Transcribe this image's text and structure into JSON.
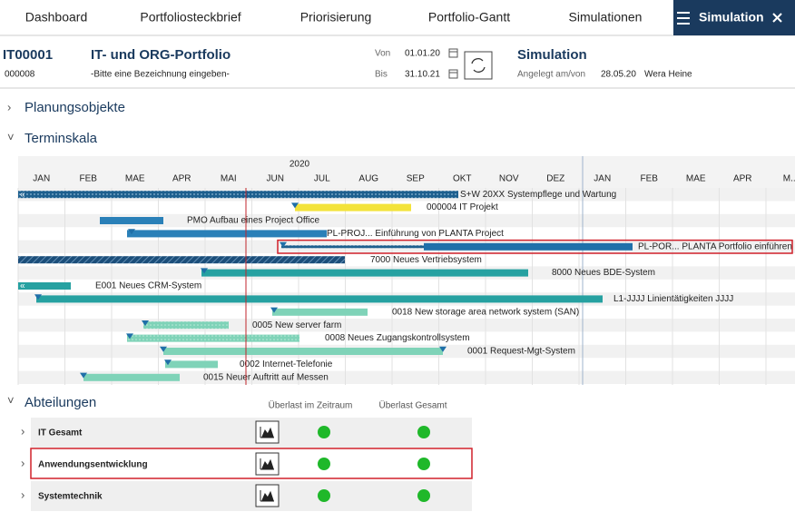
{
  "nav": {
    "tabs": [
      "Dashboard",
      "Portfoliosteckbrief",
      "Priorisierung",
      "Portfolio-Gantt",
      "Simulationen"
    ],
    "active": "Simulation"
  },
  "header": {
    "id": "IT00001",
    "sub_id": "000008",
    "title": "IT- und ORG-Portfolio",
    "description": "-Bitte eine Bezeichnung eingeben-",
    "from_label": "Von",
    "from": "01.01.20",
    "to_label": "Bis",
    "to": "31.10.21",
    "kind": "Simulation",
    "created_label": "Angelegt am/von",
    "created_date": "28.05.20",
    "created_by": "Wera Heine"
  },
  "sections": [
    "Planungsobjekte",
    "Terminskala",
    "Abteilungen"
  ],
  "gantt": {
    "year": "2020",
    "months": [
      "JAN",
      "FEB",
      "MAE",
      "APR",
      "MAI",
      "JUN",
      "JUL",
      "AUG",
      "SEP",
      "OKT",
      "NOV",
      "DEZ",
      "JAN",
      "FEB",
      "MAE",
      "APR",
      "M.."
    ],
    "rows": [
      "S+W 20XX Systempflege und Wartung",
      "000004 IT Projekt",
      "PMO Aufbau eines Project Office",
      "PL-PROJ... Einführung von PLANTA Project",
      "PL-POR... PLANTA Portfolio einführen",
      "7000 Neues Vertriebsystem",
      "8000 Neues BDE-System",
      "E001 Neues CRM-System",
      "L1-JJJJ Linientätigkeiten JJJJ",
      "0018 New storage area network system (SAN)",
      "0005 New server farm",
      "0008 Neues Zugangskontrollsystem",
      "0001 Request-Mgt-System",
      "0002 Internet-Telefonie",
      "0015 Neuer Auftritt auf Messen"
    ]
  },
  "departments": {
    "columns": [
      "Überlast im Zeitraum",
      "Überlast Gesamt"
    ],
    "rows": [
      "IT Gesamt",
      "Anwendungsentwicklung",
      "Systemtechnik"
    ]
  }
}
